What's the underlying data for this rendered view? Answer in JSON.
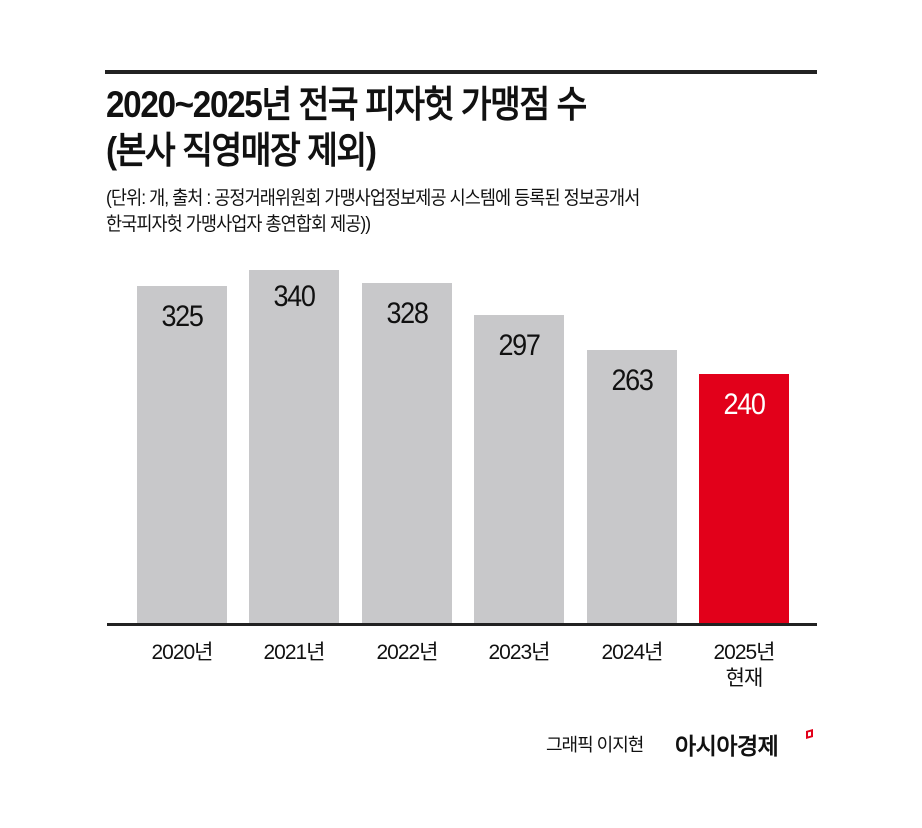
{
  "header": {
    "title_line1": "2020~2025년 전국 피자헛 가맹점 수",
    "title_line2": "(본사 직영매장 제외)",
    "subtitle_line1": "(단위: 개, 출처 : 공정거래위원회 가맹사업정보제공 시스템에 등록된 정보공개서",
    "subtitle_line2": "한국피자헛 가맹사업자 총연합회 제공))"
  },
  "footer": {
    "credit": "그래픽 이지현",
    "brand": "아시아경제",
    "brand_icon": "brand-mark-icon"
  },
  "colors": {
    "bar_default": "#c8c8ca",
    "bar_highlight": "#e2001a",
    "text": "#111111"
  },
  "chart_data": {
    "type": "bar",
    "title": "2020~2025년 전국 피자헛 가맹점 수 (본사 직영매장 제외)",
    "unit": "개",
    "categories": [
      "2020년",
      "2021년",
      "2022년",
      "2023년",
      "2024년",
      "2025년 현재"
    ],
    "values": [
      325,
      340,
      328,
      297,
      263,
      240
    ],
    "value_labels": [
      "325",
      "340",
      "328",
      "297",
      "263",
      "240"
    ],
    "highlight_index": 5,
    "xlabel": "",
    "ylabel": "",
    "grid": false,
    "legend": null,
    "bars": [
      {
        "label": "2020년",
        "sublabel": "",
        "value": "325"
      },
      {
        "label": "2021년",
        "sublabel": "",
        "value": "340"
      },
      {
        "label": "2022년",
        "sublabel": "",
        "value": "328"
      },
      {
        "label": "2023년",
        "sublabel": "",
        "value": "297"
      },
      {
        "label": "2024년",
        "sublabel": "",
        "value": "263"
      },
      {
        "label": "2025년",
        "sublabel": "현재",
        "value": "240"
      }
    ]
  }
}
